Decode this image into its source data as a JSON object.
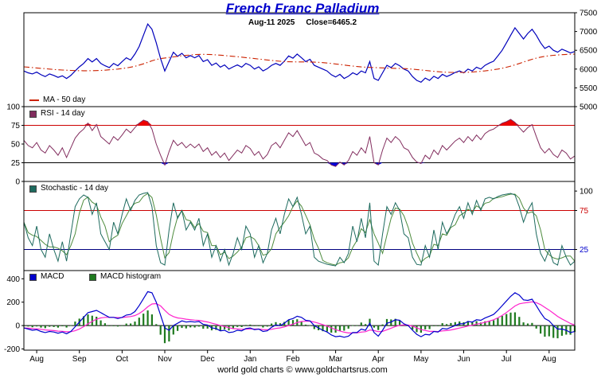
{
  "title": "French Franc Palladium",
  "subtitle": {
    "date": "Aug-11  2025",
    "close": "Close=6465.2"
  },
  "footer": "world gold charts © www.goldchartsrus.com",
  "accent_color": "#0000cc",
  "x_axis": {
    "months": [
      "Aug",
      "Sep",
      "Oct",
      "Nov",
      "Dec",
      "Jan",
      "Feb",
      "Mar",
      "Apr",
      "May",
      "Jun",
      "Jul",
      "Aug"
    ]
  },
  "legends": {
    "ma": {
      "label": "MA - 50 day",
      "color": "#cc2200"
    },
    "rsi": {
      "label": "RSI - 14 day",
      "color": "#822d5e"
    },
    "stoch": {
      "label": "Stochastic - 14 day",
      "color": "#1d6a5e"
    },
    "macd": {
      "label": "MACD",
      "color": "#0000cc"
    },
    "macd_hist": {
      "label": "MACD histogram",
      "color": "#1e7a1e"
    }
  },
  "chart_data": [
    {
      "type": "line",
      "name": "price-panel",
      "ylim": [
        5000,
        7500
      ],
      "yticks": [
        7500,
        7000,
        6500,
        6000,
        5500,
        5000
      ],
      "tick_side": "right",
      "series": [
        {
          "name": "Close",
          "color": "#0000bb",
          "values": [
            5950,
            5900,
            5870,
            5920,
            5850,
            5800,
            5870,
            5830,
            5780,
            5820,
            5750,
            5830,
            5950,
            6060,
            6150,
            6280,
            6190,
            6280,
            6150,
            6090,
            6040,
            6150,
            6090,
            6200,
            6300,
            6240,
            6400,
            6600,
            6900,
            7200,
            7060,
            6700,
            6280,
            5950,
            6200,
            6450,
            6340,
            6420,
            6300,
            6360,
            6300,
            6360,
            6200,
            6250,
            6100,
            6160,
            6050,
            6110,
            6000,
            6060,
            6110,
            6050,
            6150,
            6100,
            6000,
            6060,
            5950,
            6010,
            6100,
            6150,
            6100,
            6210,
            6350,
            6290,
            6400,
            6300,
            6200,
            6260,
            6100,
            6050,
            6000,
            5950,
            5850,
            5790,
            5860,
            5750,
            5810,
            5900,
            5850,
            5950,
            5900,
            6200,
            5750,
            5700,
            5900,
            6100,
            6040,
            6150,
            6090,
            6000,
            5950,
            5800,
            5700,
            5650,
            5760,
            5700,
            5810,
            5750,
            5860,
            5800,
            5850,
            5910,
            5950,
            5900,
            6000,
            5950,
            6050,
            6000,
            6100,
            6160,
            6210,
            6350,
            6500,
            6700,
            6900,
            7100,
            6950,
            6800,
            6950,
            7060,
            6900,
            6700,
            6550,
            6610,
            6500,
            6450,
            6530,
            6480,
            6430,
            6465.2
          ]
        },
        {
          "name": "MA - 50 day",
          "color": "#cc2200",
          "style": "dashdot",
          "values": [
            6060,
            6050,
            6040,
            6030,
            6020,
            6010,
            6000,
            5990,
            5980,
            5975,
            5970,
            5965,
            5960,
            5958,
            5956,
            5955,
            5957,
            5960,
            5965,
            5970,
            5980,
            5990,
            6000,
            6015,
            6030,
            6050,
            6075,
            6105,
            6140,
            6180,
            6220,
            6255,
            6280,
            6295,
            6310,
            6325,
            6340,
            6355,
            6365,
            6375,
            6385,
            6390,
            6392,
            6390,
            6385,
            6378,
            6370,
            6360,
            6350,
            6340,
            6330,
            6318,
            6305,
            6292,
            6280,
            6268,
            6255,
            6242,
            6230,
            6218,
            6208,
            6200,
            6195,
            6192,
            6190,
            6190,
            6190,
            6188,
            6185,
            6180,
            6172,
            6162,
            6150,
            6136,
            6122,
            6108,
            6094,
            6080,
            6068,
            6058,
            6050,
            6044,
            6040,
            6036,
            6032,
            6028,
            6024,
            6020,
            6016,
            6012,
            6006,
            5998,
            5988,
            5976,
            5964,
            5952,
            5940,
            5930,
            5922,
            5916,
            5912,
            5910,
            5910,
            5912,
            5916,
            5922,
            5930,
            5940,
            5952,
            5966,
            5982,
            6000,
            6022,
            6048,
            6078,
            6112,
            6148,
            6186,
            6224,
            6260,
            6292,
            6318,
            6338,
            6354,
            6366,
            6376,
            6384,
            6390,
            6395,
            6398
          ]
        }
      ]
    },
    {
      "type": "line",
      "name": "rsi-panel",
      "ylim": [
        0,
        100
      ],
      "yticks": [
        100,
        75,
        50,
        25,
        0
      ],
      "tick_side": "left",
      "ref_lines": [
        {
          "v": 75,
          "color": "#cc0000"
        },
        {
          "v": 25,
          "color": "#000000"
        }
      ],
      "overbought_fill": "#ee0000",
      "oversold_fill": "#0000dd",
      "series": [
        {
          "name": "RSI - 14 day",
          "color": "#822d5e",
          "values": [
            55,
            48,
            45,
            52,
            42,
            38,
            48,
            42,
            35,
            45,
            32,
            45,
            58,
            65,
            70,
            78,
            68,
            76,
            60,
            55,
            50,
            60,
            55,
            62,
            70,
            65,
            72,
            78,
            82,
            80,
            70,
            50,
            35,
            22,
            40,
            55,
            48,
            52,
            45,
            50,
            45,
            50,
            40,
            45,
            35,
            40,
            32,
            38,
            28,
            35,
            42,
            38,
            48,
            44,
            35,
            40,
            30,
            36,
            48,
            52,
            45,
            55,
            65,
            60,
            68,
            58,
            48,
            52,
            38,
            35,
            30,
            28,
            22,
            20,
            26,
            22,
            28,
            40,
            35,
            45,
            38,
            60,
            25,
            22,
            42,
            58,
            52,
            60,
            55,
            45,
            42,
            32,
            26,
            24,
            35,
            30,
            42,
            36,
            48,
            42,
            48,
            54,
            58,
            52,
            60,
            54,
            62,
            56,
            64,
            68,
            70,
            74,
            78,
            80,
            83,
            79,
            72,
            66,
            72,
            76,
            60,
            45,
            38,
            44,
            36,
            32,
            42,
            38,
            30,
            34
          ]
        }
      ]
    },
    {
      "type": "line",
      "name": "stochastic-panel",
      "ylim": [
        0,
        100
      ],
      "yticks": [
        100,
        75,
        25
      ],
      "ytick_colors": {
        "100": "#000000",
        "75": "#cc0000",
        "25": "#0000cc"
      },
      "tick_side": "right",
      "ref_lines": [
        {
          "v": 75,
          "color": "#cc0000"
        },
        {
          "v": 25,
          "color": "#000080"
        }
      ],
      "series": [
        {
          "name": "%K",
          "color": "#1d6a5e",
          "values": [
            60,
            40,
            30,
            55,
            25,
            15,
            45,
            25,
            10,
            35,
            10,
            45,
            80,
            90,
            95,
            92,
            70,
            85,
            45,
            35,
            25,
            60,
            45,
            70,
            90,
            75,
            88,
            95,
            97,
            98,
            80,
            30,
            8,
            5,
            50,
            85,
            65,
            75,
            50,
            60,
            50,
            65,
            30,
            45,
            15,
            30,
            10,
            25,
            5,
            20,
            40,
            25,
            55,
            45,
            15,
            30,
            8,
            20,
            50,
            65,
            45,
            70,
            90,
            80,
            92,
            70,
            45,
            55,
            15,
            10,
            8,
            6,
            5,
            4,
            15,
            8,
            20,
            55,
            35,
            65,
            40,
            85,
            10,
            5,
            45,
            80,
            70,
            85,
            75,
            45,
            40,
            15,
            6,
            5,
            30,
            15,
            50,
            25,
            60,
            45,
            55,
            70,
            80,
            65,
            85,
            70,
            88,
            75,
            90,
            92,
            90,
            93,
            95,
            96,
            97,
            95,
            80,
            60,
            75,
            85,
            45,
            20,
            10,
            25,
            8,
            5,
            30,
            15,
            5,
            10
          ]
        },
        {
          "name": "%D",
          "color": "#4e8c3e",
          "derived": "sma3 of %K"
        }
      ]
    },
    {
      "type": "line+bar",
      "name": "macd-panel",
      "ylim": [
        -210,
        470
      ],
      "yticks": [
        400,
        200,
        0,
        -200
      ],
      "tick_side": "left",
      "ref_lines": [
        {
          "v": 0,
          "color": "#000000"
        }
      ],
      "series": [
        {
          "name": "MACD",
          "color": "#0000cc",
          "values": [
            -20,
            -30,
            -40,
            -35,
            -50,
            -60,
            -50,
            -55,
            -65,
            -55,
            -70,
            -50,
            -10,
            30,
            70,
            110,
            120,
            130,
            110,
            90,
            70,
            70,
            60,
            70,
            90,
            95,
            120,
            170,
            230,
            290,
            280,
            200,
            90,
            -20,
            -40,
            0,
            20,
            40,
            30,
            35,
            30,
            35,
            10,
            5,
            -20,
            -25,
            -45,
            -40,
            -60,
            -55,
            -40,
            -45,
            -25,
            -20,
            -35,
            -30,
            -50,
            -45,
            -15,
            5,
            0,
            20,
            50,
            60,
            80,
            70,
            45,
            40,
            0,
            -20,
            -40,
            -55,
            -80,
            -95,
            -90,
            -100,
            -90,
            -60,
            -60,
            -30,
            -40,
            20,
            -60,
            -90,
            -40,
            20,
            30,
            50,
            45,
            15,
            0,
            -40,
            -75,
            -95,
            -75,
            -80,
            -50,
            -55,
            -25,
            -30,
            -15,
            0,
            15,
            15,
            35,
            30,
            50,
            45,
            65,
            80,
            95,
            130,
            170,
            210,
            250,
            280,
            260,
            220,
            215,
            225,
            170,
            110,
            60,
            40,
            0,
            -30,
            -30,
            -40,
            -60,
            -50
          ]
        },
        {
          "name": "Signal",
          "color": "#ff22cc",
          "derived": "ema9 of MACD"
        },
        {
          "name": "MACD histogram",
          "color": "#1e7a1e",
          "derived": "MACD - Signal"
        }
      ]
    }
  ]
}
